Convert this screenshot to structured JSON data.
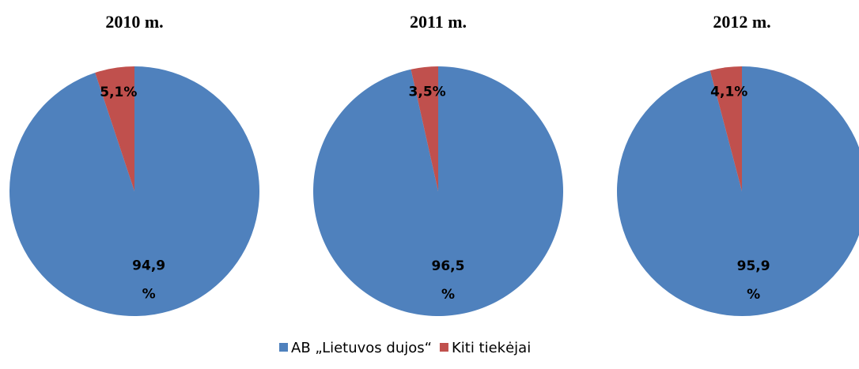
{
  "legend": {
    "labels": [
      "AB „Lietuvos dujos“",
      "Kiti tiekėjai"
    ],
    "colors": [
      "#4f81bd",
      "#c0504d"
    ]
  },
  "chart_data": [
    {
      "type": "pie",
      "title": "2010 m.",
      "values": [
        94.9,
        5.1
      ],
      "value_labels": [
        "94,9 %",
        "5,1%"
      ]
    },
    {
      "type": "pie",
      "title": "2011 m.",
      "values": [
        96.5,
        3.5
      ],
      "value_labels": [
        "96,5 %",
        "3,5%"
      ]
    },
    {
      "type": "pie",
      "title": "2012 m.",
      "values": [
        95.9,
        4.1
      ],
      "value_labels": [
        "95,9 %",
        "4,1%"
      ]
    }
  ]
}
